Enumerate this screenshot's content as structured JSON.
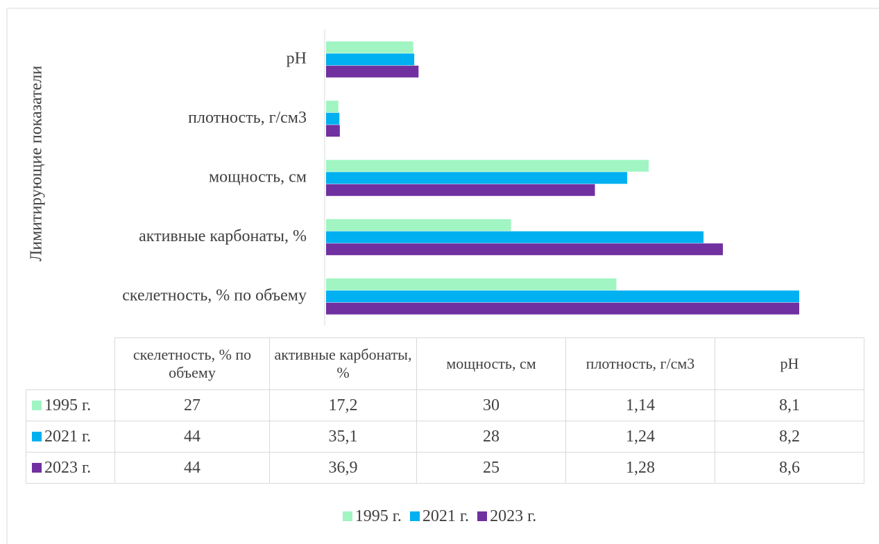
{
  "chart_data": {
    "type": "bar",
    "orientation": "horizontal",
    "y_label": "Лимитирующие показатели",
    "categories": [
      "скелетность, % по объему",
      "активные карбонаты, %",
      "мощность, см",
      "плотность, г/см3",
      "pH"
    ],
    "series": [
      {
        "name": "1995 г.",
        "color": "#a0f5c2",
        "values": [
          27,
          17.2,
          30,
          1.14,
          8.1
        ],
        "value_labels": [
          "27",
          "17,2",
          "30",
          "1,14",
          "8,1"
        ]
      },
      {
        "name": "2021 г.",
        "color": "#00b0f0",
        "values": [
          44,
          35.1,
          28,
          1.24,
          8.2
        ],
        "value_labels": [
          "44",
          "35,1",
          "28",
          "1,24",
          "8,2"
        ]
      },
      {
        "name": "2023 г.",
        "color": "#7030a0",
        "values": [
          44,
          36.9,
          25,
          1.28,
          8.6
        ],
        "value_labels": [
          "44",
          "36,9",
          "25",
          "1,28",
          "8,6"
        ]
      }
    ],
    "xlim": [
      0,
      50
    ],
    "legend": "bottom",
    "data_table": true
  }
}
